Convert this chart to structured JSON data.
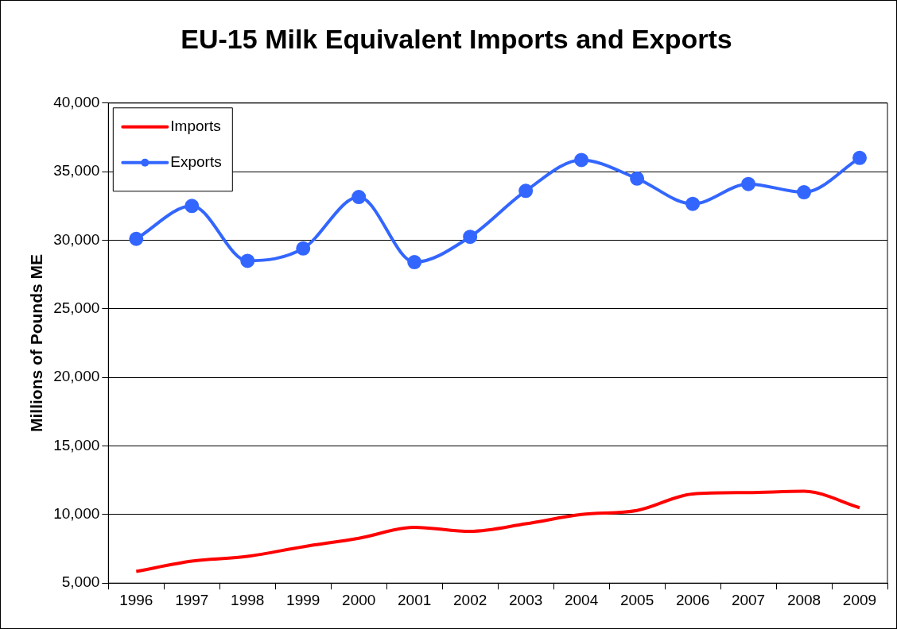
{
  "chart_data": {
    "type": "line",
    "title": "EU-15 Milk Equivalent Imports and Exports",
    "ylabel": "Millions of Pounds ME",
    "categories": [
      "1996",
      "1997",
      "1998",
      "1999",
      "2000",
      "2001",
      "2002",
      "2003",
      "2004",
      "2005",
      "2006",
      "2007",
      "2008",
      "2009"
    ],
    "series": [
      {
        "name": "Imports",
        "color": "#ff0000",
        "marker": "none",
        "values": [
          5850,
          6600,
          6950,
          7650,
          8270,
          9070,
          8770,
          9320,
          10000,
          10300,
          11500,
          11600,
          11700,
          10500
        ]
      },
      {
        "name": "Exports",
        "color": "#3366ff",
        "marker": "circle",
        "values": [
          30100,
          32500,
          28500,
          29400,
          33150,
          28400,
          30250,
          33600,
          35850,
          34500,
          32650,
          34100,
          33500,
          36000
        ]
      }
    ],
    "ylim": [
      5000,
      40000
    ],
    "yticks": [
      {
        "value": 5000,
        "label": "5,000"
      },
      {
        "value": 10000,
        "label": "10,000"
      },
      {
        "value": 15000,
        "label": "15,000"
      },
      {
        "value": 20000,
        "label": "20,000"
      },
      {
        "value": 25000,
        "label": "25,000"
      },
      {
        "value": 30000,
        "label": "30,000"
      },
      {
        "value": 35000,
        "label": "35,000"
      },
      {
        "value": 40000,
        "label": "40,000"
      }
    ],
    "grid": "y",
    "legend": "top left"
  }
}
